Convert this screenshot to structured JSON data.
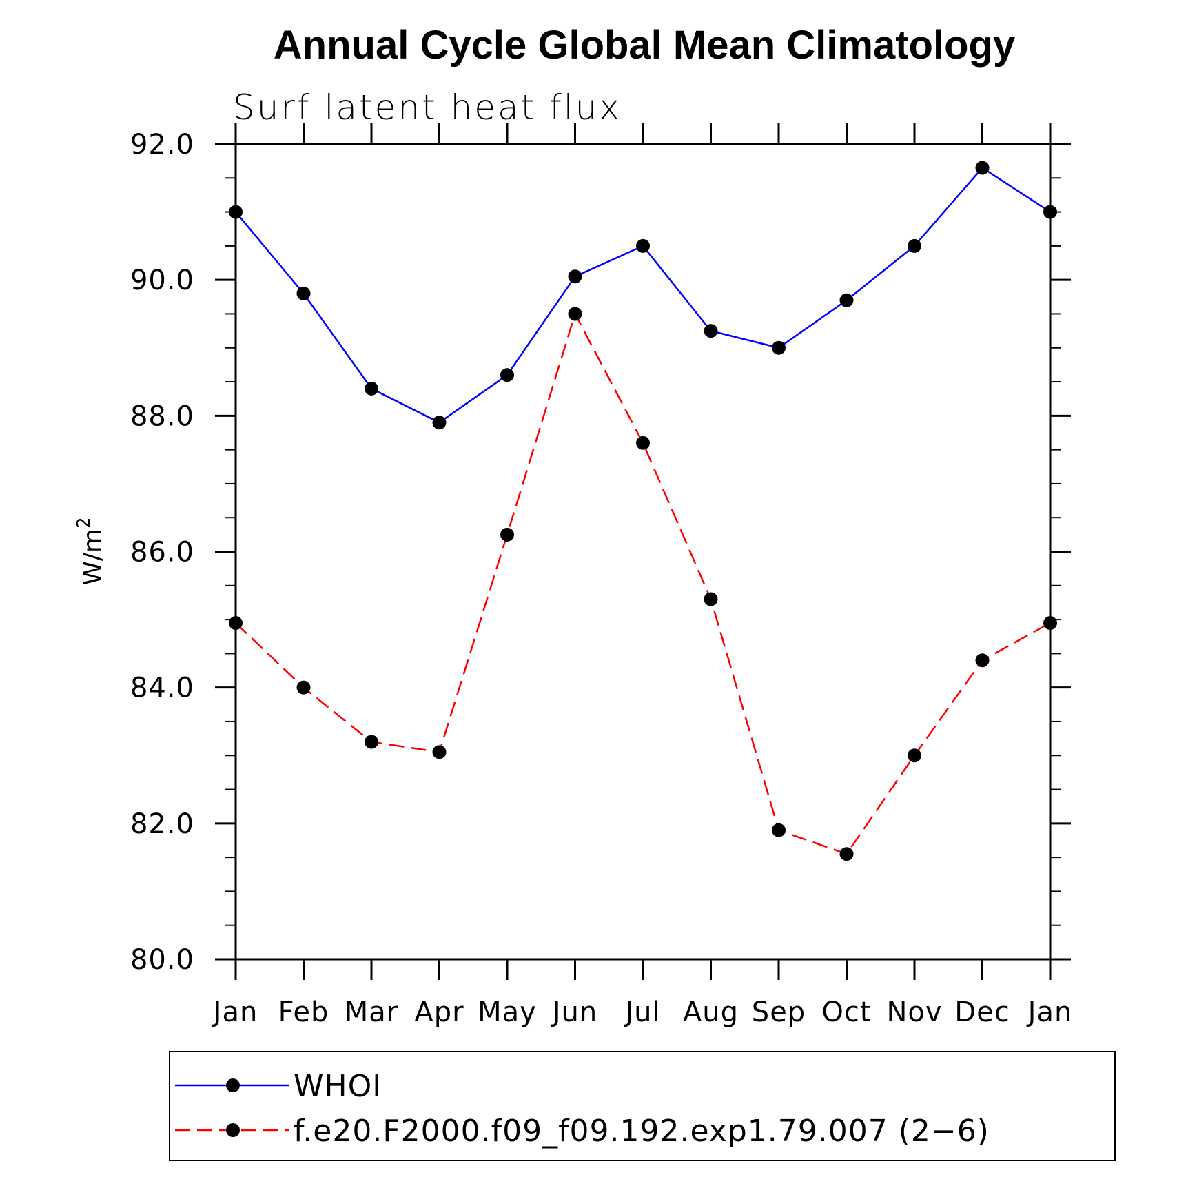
{
  "chart_data": {
    "type": "line",
    "title": "Annual Cycle Global Mean Climatology",
    "subtitle": "Surf latent heat flux",
    "ylabel": "W/m",
    "ylabel_superscript": "2",
    "xlabel": "",
    "categories": [
      "Jan",
      "Feb",
      "Mar",
      "Apr",
      "May",
      "Jun",
      "Jul",
      "Aug",
      "Sep",
      "Oct",
      "Nov",
      "Dec",
      "Jan"
    ],
    "ylim": [
      80.0,
      92.0
    ],
    "yticks": [
      "80.0",
      "82.0",
      "84.0",
      "86.0",
      "88.0",
      "90.0",
      "92.0"
    ],
    "grid": false,
    "legend_position": "bottom",
    "series": [
      {
        "name": "WHOI",
        "color": "#0000ff",
        "dash": "solid",
        "marker": "filled-circle",
        "values": [
          91.0,
          89.8,
          88.4,
          87.9,
          88.6,
          90.05,
          90.5,
          89.25,
          89.0,
          89.7,
          90.5,
          91.65,
          91.0
        ]
      },
      {
        "name": "f.e20.F2000.f09_f09.192.exp1.79.007 (2−6)",
        "color": "#ff0000",
        "dash": "dashed",
        "marker": "filled-circle",
        "values": [
          84.95,
          84.0,
          83.2,
          83.05,
          86.25,
          89.5,
          87.6,
          85.3,
          81.9,
          81.55,
          83.0,
          84.4,
          84.95
        ]
      }
    ]
  }
}
